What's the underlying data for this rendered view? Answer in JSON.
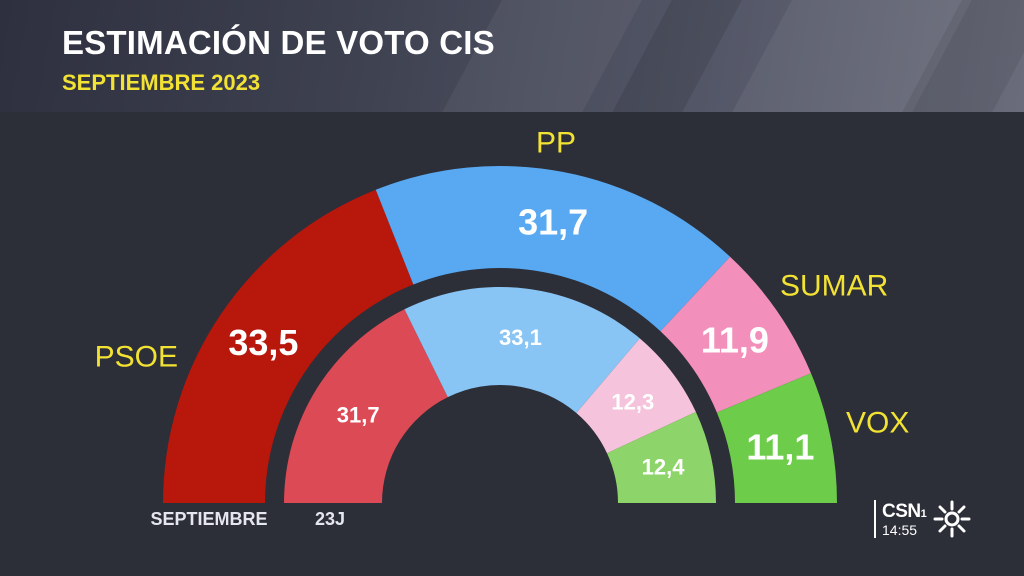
{
  "header": {
    "title": "ESTIMACIÓN DE VOTO CIS",
    "subtitle": "SEPTIEMBRE 2023"
  },
  "chart_data": {
    "type": "semicircle-donut",
    "title": "ESTIMACIÓN DE VOTO CIS",
    "subtitle": "SEPTIEMBRE 2023",
    "categories": [
      "PSOE",
      "PP",
      "SUMAR",
      "VOX"
    ],
    "colors": {
      "outer": [
        "#b8170c",
        "#58a9f2",
        "#f28fba",
        "#6dcc4a"
      ],
      "inner": [
        "#dc4a55",
        "#88c4f4",
        "#f5c3dc",
        "#8dd56a"
      ]
    },
    "series": [
      {
        "name": "SEPTIEMBRE",
        "ring": "outer",
        "values": [
          33.5,
          31.7,
          11.9,
          11.1
        ],
        "labels": [
          "33,5",
          "31,7",
          "11,9",
          "11,1"
        ]
      },
      {
        "name": "23J",
        "ring": "inner",
        "values": [
          31.7,
          33.1,
          12.3,
          12.4
        ],
        "labels": [
          "31,7",
          "33,1",
          "12,3",
          "12,4"
        ]
      }
    ]
  },
  "logo": {
    "brand": "CSN",
    "brand_sub": "1",
    "time": "14:55",
    "icon": "canal-sur-sun-icon"
  }
}
